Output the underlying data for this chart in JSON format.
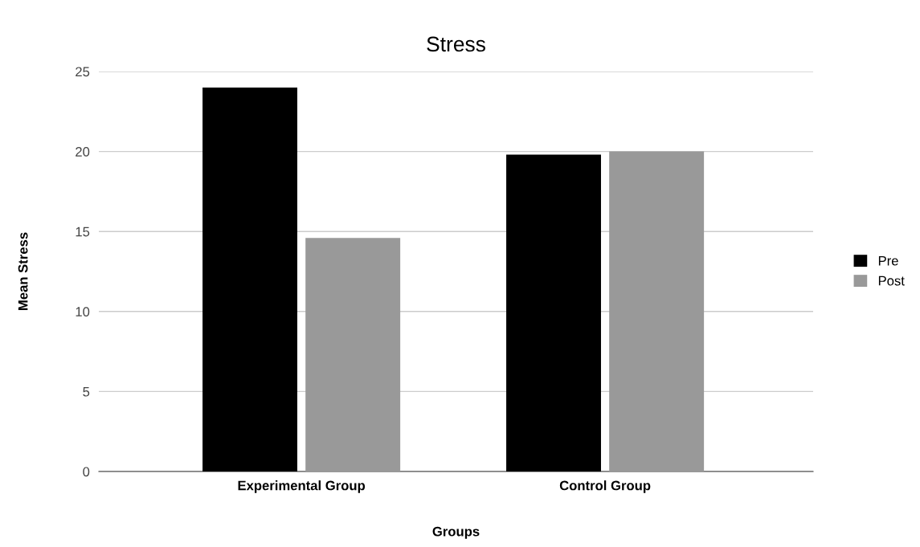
{
  "chart_data": {
    "type": "bar",
    "title": "Stress",
    "xlabel": "Groups",
    "ylabel": "Mean Stress",
    "categories": [
      "Experimental Group",
      "Control Group"
    ],
    "series": [
      {
        "name": "Pre",
        "color": "#000000",
        "values": [
          24,
          19.8
        ]
      },
      {
        "name": "Post",
        "color": "#999999",
        "values": [
          14.6,
          20
        ]
      }
    ],
    "ylim": [
      0,
      25
    ],
    "yticks": [
      0,
      5,
      10,
      15,
      20,
      25
    ],
    "grid": "y",
    "legend": "right"
  }
}
